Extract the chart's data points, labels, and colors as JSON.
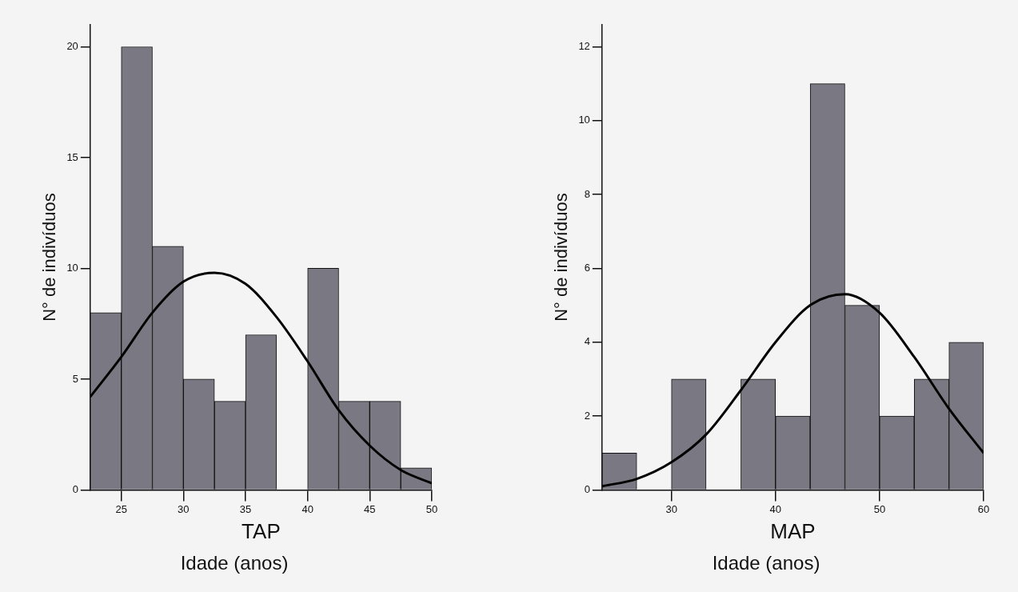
{
  "chart_data": [
    {
      "type": "histogram",
      "title": "TAP",
      "xlabel": "Idade (anos)",
      "ylabel": "N° de indivíduos",
      "bins": [
        22.5,
        25,
        27.5,
        30,
        32.5,
        35,
        37.5,
        40,
        42.5,
        45,
        47.5,
        50
      ],
      "values": [
        8,
        20,
        11,
        5,
        4,
        7,
        0,
        10,
        4,
        4,
        1
      ],
      "color": "#7a7882",
      "series": [
        {
          "type": "line",
          "color": "#000000",
          "x": [
            22.5,
            25,
            27.5,
            30,
            32.5,
            35,
            37.5,
            40,
            42.5,
            45,
            47.5,
            50
          ],
          "values": [
            4.2,
            6.0,
            8.0,
            9.4,
            9.8,
            9.3,
            7.8,
            5.8,
            3.6,
            2.0,
            0.9,
            0.3
          ]
        }
      ],
      "xlim": [
        22.5,
        50
      ],
      "xticks": [
        25,
        30,
        35,
        40,
        45,
        50
      ],
      "ylim": [
        0,
        21
      ],
      "yticks": [
        0,
        5,
        10,
        15,
        20
      ],
      "marker": "none",
      "grid": false,
      "legend": false
    },
    {
      "type": "histogram",
      "title": "MAP",
      "xlabel": "Idade (anos)",
      "ylabel": "N° de indivíduos",
      "bins": [
        23.33,
        26.67,
        30,
        33.33,
        36.67,
        40,
        43.33,
        46.67,
        50,
        53.33,
        56.67,
        60
      ],
      "values": [
        1,
        0,
        3,
        0,
        3,
        2,
        11,
        5,
        2,
        3,
        4
      ],
      "color": "#7a7882",
      "series": [
        {
          "type": "line",
          "color": "#000000",
          "x": [
            23.33,
            26.67,
            30,
            33.33,
            36.67,
            40,
            43.33,
            46.67,
            50,
            53.33,
            56.67,
            60
          ],
          "values": [
            0.1,
            0.3,
            0.75,
            1.5,
            2.7,
            4.0,
            5.0,
            5.3,
            4.8,
            3.6,
            2.2,
            1.0
          ]
        }
      ],
      "xlim": [
        23.33,
        60
      ],
      "xticks": [
        30,
        40,
        50,
        60
      ],
      "ylim": [
        0,
        12.6
      ],
      "yticks": [
        0,
        2,
        4,
        6,
        8,
        10,
        12
      ],
      "marker": "none",
      "grid": false,
      "legend": false
    }
  ]
}
